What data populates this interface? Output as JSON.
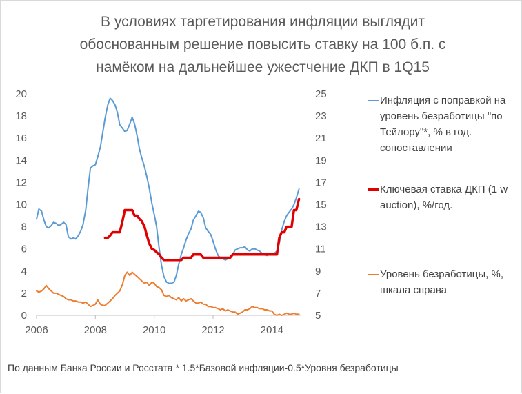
{
  "title_lines": [
    "В условиях таргетирования инфляции выглядит",
    "обоснованным решение повысить ставку на 100 б.п. с",
    "намёком на дальнейшее ужестчение ДКП в 1Q15"
  ],
  "footnote": "По данным Банка России и Росстата  * 1.5*Базовой инфляции-0.5*Уровня безработицы",
  "chart_data": {
    "type": "line",
    "title": "В условиях таргетирования инфляции выглядит обоснованным решение повысить ставку на 100 б.п. с намёком на дальнейшее ужестчение ДКП в 1Q15",
    "x_ticks": [
      2006,
      2008,
      2010,
      2012,
      2014
    ],
    "xlim": [
      2006,
      2015
    ],
    "y_left": {
      "lim": [
        0,
        20
      ],
      "ticks": [
        0,
        2,
        4,
        6,
        8,
        10,
        12,
        14,
        16,
        18,
        20
      ]
    },
    "y_right": {
      "lim": [
        5,
        25
      ],
      "ticks": [
        5,
        7,
        9,
        11,
        13,
        15,
        17,
        19,
        21,
        23,
        25
      ]
    },
    "grid": false,
    "legend_position": "right",
    "series": [
      {
        "name": "Инфляция с поправкой на уровень безработицы \"по Тейлору\"*, % в год. сопоставлении",
        "axis": "left",
        "color": "#5b9bd5",
        "points": [
          [
            2006.0,
            8.7
          ],
          [
            2006.08,
            9.6
          ],
          [
            2006.17,
            9.4
          ],
          [
            2006.25,
            8.6
          ],
          [
            2006.33,
            8.0
          ],
          [
            2006.42,
            7.9
          ],
          [
            2006.5,
            8.1
          ],
          [
            2006.58,
            8.4
          ],
          [
            2006.67,
            8.3
          ],
          [
            2006.75,
            8.1
          ],
          [
            2006.83,
            8.2
          ],
          [
            2006.92,
            8.4
          ],
          [
            2007.0,
            8.2
          ],
          [
            2007.08,
            7.1
          ],
          [
            2007.17,
            6.9
          ],
          [
            2007.25,
            7.0
          ],
          [
            2007.33,
            6.9
          ],
          [
            2007.42,
            7.2
          ],
          [
            2007.5,
            7.6
          ],
          [
            2007.58,
            8.2
          ],
          [
            2007.67,
            9.5
          ],
          [
            2007.75,
            11.5
          ],
          [
            2007.83,
            13.3
          ],
          [
            2007.92,
            13.5
          ],
          [
            2008.0,
            13.6
          ],
          [
            2008.08,
            14.3
          ],
          [
            2008.17,
            15.2
          ],
          [
            2008.25,
            16.5
          ],
          [
            2008.33,
            17.8
          ],
          [
            2008.42,
            19.0
          ],
          [
            2008.5,
            19.6
          ],
          [
            2008.58,
            19.4
          ],
          [
            2008.67,
            19.0
          ],
          [
            2008.75,
            18.3
          ],
          [
            2008.83,
            17.2
          ],
          [
            2008.92,
            16.9
          ],
          [
            2009.0,
            16.6
          ],
          [
            2009.08,
            16.7
          ],
          [
            2009.17,
            17.3
          ],
          [
            2009.25,
            17.9
          ],
          [
            2009.33,
            17.3
          ],
          [
            2009.42,
            16.2
          ],
          [
            2009.5,
            15.0
          ],
          [
            2009.58,
            14.2
          ],
          [
            2009.67,
            13.4
          ],
          [
            2009.75,
            12.5
          ],
          [
            2009.83,
            11.5
          ],
          [
            2009.92,
            10.1
          ],
          [
            2010.0,
            9.1
          ],
          [
            2010.08,
            8.0
          ],
          [
            2010.17,
            6.0
          ],
          [
            2010.25,
            4.5
          ],
          [
            2010.33,
            3.5
          ],
          [
            2010.42,
            3.0
          ],
          [
            2010.5,
            2.9
          ],
          [
            2010.58,
            2.9
          ],
          [
            2010.67,
            3.0
          ],
          [
            2010.75,
            3.6
          ],
          [
            2010.83,
            4.6
          ],
          [
            2010.92,
            5.5
          ],
          [
            2011.0,
            6.1
          ],
          [
            2011.08,
            6.8
          ],
          [
            2011.17,
            7.4
          ],
          [
            2011.25,
            7.8
          ],
          [
            2011.33,
            8.6
          ],
          [
            2011.42,
            9.0
          ],
          [
            2011.5,
            9.4
          ],
          [
            2011.58,
            9.3
          ],
          [
            2011.67,
            8.8
          ],
          [
            2011.75,
            7.9
          ],
          [
            2011.83,
            7.6
          ],
          [
            2011.92,
            7.3
          ],
          [
            2012.0,
            6.7
          ],
          [
            2012.08,
            6.0
          ],
          [
            2012.17,
            5.4
          ],
          [
            2012.25,
            5.2
          ],
          [
            2012.33,
            5.1
          ],
          [
            2012.42,
            5.0
          ],
          [
            2012.5,
            5.1
          ],
          [
            2012.58,
            5.2
          ],
          [
            2012.67,
            5.5
          ],
          [
            2012.75,
            5.9
          ],
          [
            2012.83,
            6.0
          ],
          [
            2012.92,
            6.1
          ],
          [
            2013.0,
            6.1
          ],
          [
            2013.08,
            6.2
          ],
          [
            2013.17,
            5.9
          ],
          [
            2013.25,
            5.8
          ],
          [
            2013.33,
            6.0
          ],
          [
            2013.42,
            6.0
          ],
          [
            2013.5,
            5.9
          ],
          [
            2013.58,
            5.8
          ],
          [
            2013.67,
            5.6
          ],
          [
            2013.75,
            5.5
          ],
          [
            2013.83,
            5.4
          ],
          [
            2013.92,
            5.5
          ],
          [
            2014.0,
            5.5
          ],
          [
            2014.08,
            5.6
          ],
          [
            2014.17,
            5.8
          ],
          [
            2014.25,
            6.5
          ],
          [
            2014.33,
            7.7
          ],
          [
            2014.42,
            8.5
          ],
          [
            2014.5,
            9.0
          ],
          [
            2014.58,
            9.3
          ],
          [
            2014.67,
            9.6
          ],
          [
            2014.75,
            10.0
          ],
          [
            2014.83,
            10.6
          ],
          [
            2014.92,
            11.4
          ]
        ]
      },
      {
        "name": "Ключевая ставка ДКП (1 w auction), %/год.",
        "axis": "left",
        "color": "#e00000",
        "points": [
          [
            2008.33,
            7.0
          ],
          [
            2008.42,
            7.0
          ],
          [
            2008.5,
            7.2
          ],
          [
            2008.58,
            7.5
          ],
          [
            2008.67,
            7.5
          ],
          [
            2008.75,
            7.5
          ],
          [
            2008.83,
            7.5
          ],
          [
            2008.92,
            8.5
          ],
          [
            2009.0,
            9.5
          ],
          [
            2009.08,
            9.5
          ],
          [
            2009.17,
            9.5
          ],
          [
            2009.25,
            9.5
          ],
          [
            2009.33,
            9.0
          ],
          [
            2009.42,
            9.0
          ],
          [
            2009.5,
            8.7
          ],
          [
            2009.58,
            8.5
          ],
          [
            2009.67,
            8.0
          ],
          [
            2009.75,
            7.2
          ],
          [
            2009.83,
            6.5
          ],
          [
            2009.92,
            6.0
          ],
          [
            2010.0,
            5.9
          ],
          [
            2010.08,
            5.7
          ],
          [
            2010.17,
            5.5
          ],
          [
            2010.25,
            5.2
          ],
          [
            2010.33,
            5.0
          ],
          [
            2010.42,
            5.0
          ],
          [
            2010.5,
            5.0
          ],
          [
            2010.58,
            5.0
          ],
          [
            2010.67,
            5.0
          ],
          [
            2010.75,
            5.0
          ],
          [
            2010.83,
            5.0
          ],
          [
            2010.92,
            5.0
          ],
          [
            2011.0,
            5.2
          ],
          [
            2011.08,
            5.2
          ],
          [
            2011.17,
            5.2
          ],
          [
            2011.25,
            5.2
          ],
          [
            2011.33,
            5.5
          ],
          [
            2011.42,
            5.5
          ],
          [
            2011.5,
            5.5
          ],
          [
            2011.58,
            5.5
          ],
          [
            2011.67,
            5.2
          ],
          [
            2011.75,
            5.2
          ],
          [
            2011.83,
            5.2
          ],
          [
            2011.92,
            5.2
          ],
          [
            2012.0,
            5.2
          ],
          [
            2012.08,
            5.2
          ],
          [
            2012.17,
            5.2
          ],
          [
            2012.25,
            5.2
          ],
          [
            2012.33,
            5.2
          ],
          [
            2012.42,
            5.2
          ],
          [
            2012.5,
            5.2
          ],
          [
            2012.58,
            5.2
          ],
          [
            2012.67,
            5.5
          ],
          [
            2012.75,
            5.5
          ],
          [
            2012.83,
            5.5
          ],
          [
            2012.92,
            5.5
          ],
          [
            2013.0,
            5.5
          ],
          [
            2013.08,
            5.5
          ],
          [
            2013.17,
            5.5
          ],
          [
            2013.25,
            5.5
          ],
          [
            2013.33,
            5.5
          ],
          [
            2013.42,
            5.5
          ],
          [
            2013.5,
            5.5
          ],
          [
            2013.58,
            5.5
          ],
          [
            2013.67,
            5.5
          ],
          [
            2013.75,
            5.5
          ],
          [
            2013.83,
            5.5
          ],
          [
            2013.92,
            5.5
          ],
          [
            2014.0,
            5.5
          ],
          [
            2014.08,
            5.5
          ],
          [
            2014.17,
            5.5
          ],
          [
            2014.25,
            7.0
          ],
          [
            2014.33,
            7.5
          ],
          [
            2014.42,
            7.5
          ],
          [
            2014.5,
            8.0
          ],
          [
            2014.58,
            8.0
          ],
          [
            2014.67,
            8.0
          ],
          [
            2014.75,
            9.5
          ],
          [
            2014.83,
            9.5
          ],
          [
            2014.92,
            10.5
          ]
        ]
      },
      {
        "name": "Уровень безработицы, %, шкала справа",
        "axis": "right",
        "color": "#ed7d31",
        "points": [
          [
            2006.0,
            7.2
          ],
          [
            2006.08,
            7.1
          ],
          [
            2006.17,
            7.2
          ],
          [
            2006.25,
            7.4
          ],
          [
            2006.33,
            7.7
          ],
          [
            2006.42,
            7.4
          ],
          [
            2006.5,
            7.2
          ],
          [
            2006.58,
            7.0
          ],
          [
            2006.67,
            7.0
          ],
          [
            2006.75,
            6.9
          ],
          [
            2006.83,
            6.8
          ],
          [
            2006.92,
            6.7
          ],
          [
            2007.0,
            6.5
          ],
          [
            2007.08,
            6.4
          ],
          [
            2007.17,
            6.4
          ],
          [
            2007.25,
            6.3
          ],
          [
            2007.33,
            6.3
          ],
          [
            2007.42,
            6.2
          ],
          [
            2007.5,
            6.2
          ],
          [
            2007.58,
            6.1
          ],
          [
            2007.67,
            6.2
          ],
          [
            2007.75,
            6.0
          ],
          [
            2007.83,
            5.8
          ],
          [
            2007.92,
            5.9
          ],
          [
            2008.0,
            6.0
          ],
          [
            2008.08,
            6.4
          ],
          [
            2008.17,
            6.0
          ],
          [
            2008.25,
            5.9
          ],
          [
            2008.33,
            5.9
          ],
          [
            2008.42,
            6.1
          ],
          [
            2008.5,
            6.3
          ],
          [
            2008.58,
            6.5
          ],
          [
            2008.67,
            6.8
          ],
          [
            2008.75,
            7.0
          ],
          [
            2008.83,
            7.2
          ],
          [
            2008.92,
            7.8
          ],
          [
            2009.0,
            8.6
          ],
          [
            2009.08,
            8.9
          ],
          [
            2009.17,
            8.6
          ],
          [
            2009.25,
            8.9
          ],
          [
            2009.33,
            8.7
          ],
          [
            2009.42,
            8.5
          ],
          [
            2009.5,
            8.3
          ],
          [
            2009.58,
            8.1
          ],
          [
            2009.67,
            7.9
          ],
          [
            2009.75,
            8.0
          ],
          [
            2009.83,
            7.7
          ],
          [
            2009.92,
            8.0
          ],
          [
            2010.0,
            7.9
          ],
          [
            2010.08,
            7.6
          ],
          [
            2010.17,
            7.5
          ],
          [
            2010.25,
            7.3
          ],
          [
            2010.33,
            6.8
          ],
          [
            2010.42,
            6.7
          ],
          [
            2010.5,
            6.8
          ],
          [
            2010.58,
            6.6
          ],
          [
            2010.67,
            6.5
          ],
          [
            2010.75,
            6.4
          ],
          [
            2010.83,
            6.6
          ],
          [
            2010.92,
            6.3
          ],
          [
            2011.0,
            6.5
          ],
          [
            2011.08,
            6.3
          ],
          [
            2011.17,
            6.4
          ],
          [
            2011.25,
            6.5
          ],
          [
            2011.33,
            6.3
          ],
          [
            2011.42,
            6.1
          ],
          [
            2011.5,
            6.1
          ],
          [
            2011.58,
            6.2
          ],
          [
            2011.67,
            6.0
          ],
          [
            2011.75,
            6.0
          ],
          [
            2011.83,
            5.8
          ],
          [
            2011.92,
            5.8
          ],
          [
            2012.0,
            5.7
          ],
          [
            2012.08,
            5.7
          ],
          [
            2012.17,
            5.6
          ],
          [
            2012.25,
            5.5
          ],
          [
            2012.33,
            5.6
          ],
          [
            2012.42,
            5.4
          ],
          [
            2012.5,
            5.5
          ],
          [
            2012.58,
            5.4
          ],
          [
            2012.67,
            5.3
          ],
          [
            2012.75,
            5.3
          ],
          [
            2012.83,
            5.1
          ],
          [
            2012.92,
            5.2
          ],
          [
            2013.0,
            5.3
          ],
          [
            2013.08,
            5.5
          ],
          [
            2013.17,
            5.5
          ],
          [
            2013.25,
            5.6
          ],
          [
            2013.33,
            5.8
          ],
          [
            2013.42,
            5.7
          ],
          [
            2013.5,
            5.7
          ],
          [
            2013.58,
            5.6
          ],
          [
            2013.67,
            5.6
          ],
          [
            2013.75,
            5.5
          ],
          [
            2013.83,
            5.5
          ],
          [
            2013.92,
            5.4
          ],
          [
            2014.0,
            5.4
          ],
          [
            2014.08,
            5.1
          ],
          [
            2014.17,
            5.0
          ],
          [
            2014.25,
            5.1
          ],
          [
            2014.33,
            5.0
          ],
          [
            2014.42,
            5.1
          ],
          [
            2014.5,
            5.2
          ],
          [
            2014.58,
            5.1
          ],
          [
            2014.67,
            5.1
          ],
          [
            2014.75,
            5.2
          ],
          [
            2014.83,
            5.1
          ],
          [
            2014.92,
            5.1
          ]
        ]
      }
    ]
  }
}
